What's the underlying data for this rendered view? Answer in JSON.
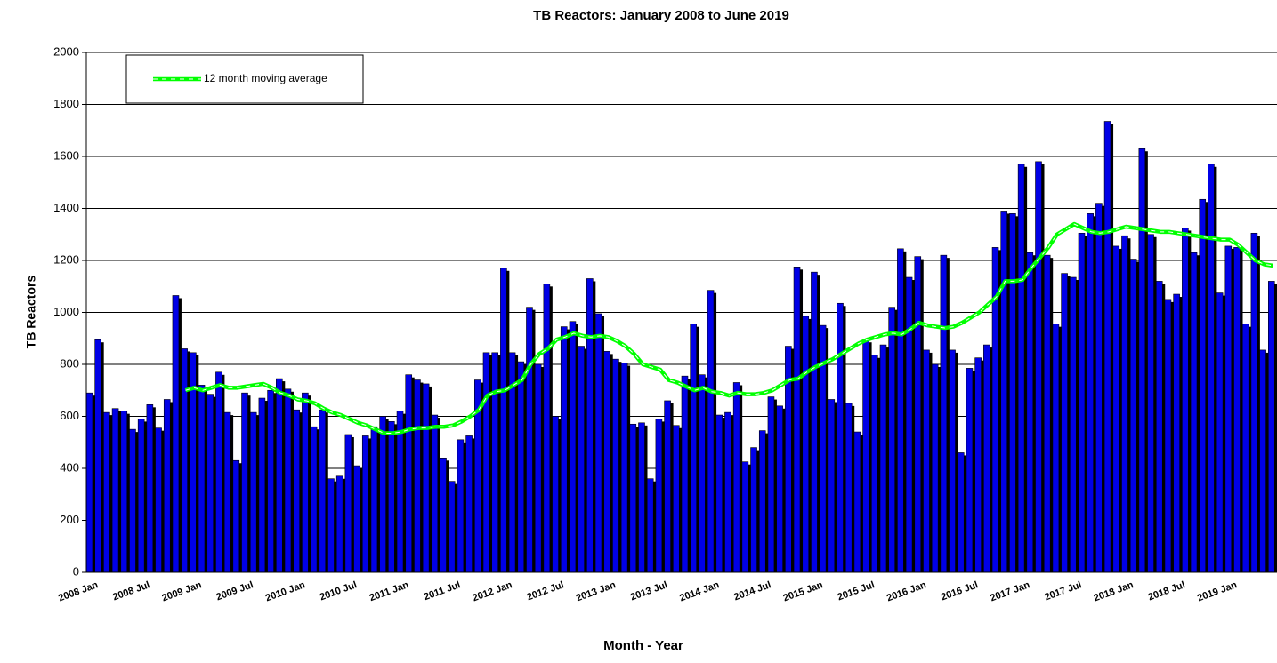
{
  "chart_data": {
    "type": "bar",
    "title": "TB Reactors: January 2008 to June 2019",
    "x_label": "Month - Year",
    "y_label": "TB Reactors",
    "categories": [
      "2008 Jan",
      null,
      null,
      null,
      null,
      null,
      "2008 Jul",
      null,
      null,
      null,
      null,
      null,
      "2009 Jan",
      null,
      null,
      null,
      null,
      null,
      "2009 Jul",
      null,
      null,
      null,
      null,
      null,
      "2010 Jan",
      null,
      null,
      null,
      null,
      null,
      "2010 Jul",
      null,
      null,
      null,
      null,
      null,
      "2011 Jan",
      null,
      null,
      null,
      null,
      null,
      "2011 Jul",
      null,
      null,
      null,
      null,
      null,
      "2012 Jan",
      null,
      null,
      null,
      null,
      null,
      "2012 Jul",
      null,
      null,
      null,
      null,
      null,
      "2013 Jan",
      null,
      null,
      null,
      null,
      null,
      "2013 Jul",
      null,
      null,
      null,
      null,
      null,
      "2014 Jan",
      null,
      null,
      null,
      null,
      null,
      "2014 Jul",
      null,
      null,
      null,
      null,
      null,
      "2015 Jan",
      null,
      null,
      null,
      null,
      null,
      "2015 Jul",
      null,
      null,
      null,
      null,
      null,
      "2016 Jan",
      null,
      null,
      null,
      null,
      null,
      "2016 Jul",
      null,
      null,
      null,
      null,
      null,
      "2017 Jan",
      null,
      null,
      null,
      null,
      null,
      "2017 Jul",
      null,
      null,
      null,
      null,
      null,
      "2018 Jan",
      null,
      null,
      null,
      null,
      null,
      "2018 Jul",
      null,
      null,
      null,
      null,
      null,
      "2019 Jan",
      null,
      null,
      null,
      null,
      null
    ],
    "series": [
      {
        "type": "bar",
        "color": "#0000e6",
        "values": [
          690,
          895,
          615,
          630,
          620,
          550,
          590,
          645,
          555,
          665,
          1065,
          860,
          845,
          720,
          685,
          770,
          615,
          430,
          690,
          615,
          670,
          700,
          745,
          705,
          625,
          690,
          560,
          625,
          360,
          370,
          530,
          410,
          525,
          560,
          600,
          580,
          620,
          760,
          740,
          725,
          605,
          440,
          350,
          510,
          525,
          740,
          845,
          845,
          1170,
          845,
          810,
          1020,
          800,
          1110,
          600,
          945,
          965,
          870,
          1130,
          995,
          850,
          820,
          805,
          570,
          575,
          360,
          590,
          660,
          565,
          755,
          955,
          760,
          1085,
          605,
          615,
          730,
          425,
          480,
          545,
          675,
          640,
          870,
          1175,
          985,
          1155,
          950,
          665,
          1035,
          650,
          540,
          895,
          835,
          875,
          1020,
          1245,
          1135,
          1215,
          855,
          800,
          1220,
          855,
          460,
          785,
          825,
          875,
          1250,
          1390,
          1380,
          1570,
          1230,
          1580,
          1220,
          955,
          1150,
          1135,
          1305,
          1380,
          1420,
          1735,
          1255,
          1295,
          1205,
          1630,
          1300,
          1120,
          1050,
          1070,
          1325,
          1230,
          1435,
          1570,
          1075,
          1255,
          1250,
          955,
          1305,
          855,
          1120
        ]
      },
      {
        "type": "line",
        "name": "12 month moving average",
        "color": "#00ff00",
        "values": [
          null,
          null,
          null,
          null,
          null,
          null,
          null,
          null,
          null,
          null,
          null,
          700,
          710,
          700,
          710,
          720,
          710,
          710,
          715,
          720,
          725,
          710,
          690,
          680,
          665,
          660,
          650,
          630,
          615,
          605,
          590,
          575,
          565,
          550,
          535,
          535,
          540,
          550,
          555,
          555,
          560,
          560,
          565,
          580,
          600,
          625,
          680,
          695,
          700,
          720,
          740,
          800,
          840,
          860,
          895,
          905,
          920,
          910,
          905,
          910,
          905,
          890,
          870,
          840,
          800,
          790,
          780,
          740,
          730,
          715,
          700,
          710,
          695,
          690,
          680,
          690,
          685,
          685,
          690,
          700,
          720,
          740,
          745,
          770,
          790,
          805,
          820,
          840,
          860,
          880,
          895,
          905,
          915,
          920,
          915,
          935,
          960,
          950,
          945,
          940,
          945,
          960,
          980,
          1000,
          1030,
          1060,
          1120,
          1120,
          1125,
          1170,
          1210,
          1250,
          1300,
          1320,
          1340,
          1325,
          1310,
          1305,
          1310,
          1320,
          1330,
          1325,
          1320,
          1315,
          1310,
          1310,
          1305,
          1300,
          1295,
          1290,
          1285,
          1280,
          1280,
          1260,
          1230,
          1200,
          1185,
          1180
        ]
      }
    ],
    "ylim": [
      0,
      2000
    ],
    "yticks": [
      0,
      200,
      400,
      600,
      800,
      1000,
      1200,
      1400,
      1600,
      1800,
      2000
    ],
    "grid": true
  }
}
